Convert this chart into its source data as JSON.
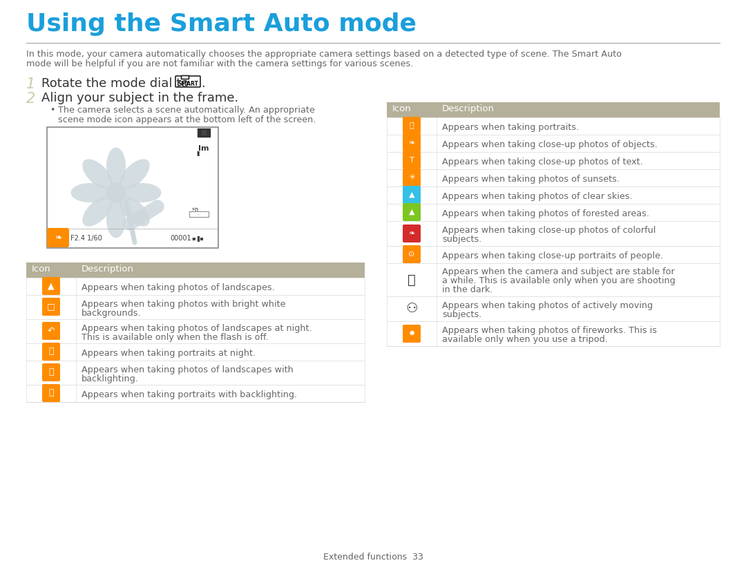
{
  "title": "Using the Smart Auto mode",
  "title_color": "#1a9fdb",
  "title_underline_color": "#999999",
  "intro_text_line1": "In this mode, your camera automatically chooses the appropriate camera settings based on a detected type of scene. The Smart Auto",
  "intro_text_line2": "mode will be helpful if you are not familiar with the camera settings for various scenes.",
  "step1_num": "1",
  "step1_text": "Rotate the mode dial to",
  "step2_num": "2",
  "step2_text": "Align your subject in the frame.",
  "bullet_line1": "The camera selects a scene automatically. An appropriate",
  "bullet_line2": "scene mode icon appears at the bottom left of the screen.",
  "table_header_bg": "#b5b09a",
  "table_border_color": "#dddddd",
  "text_color": "#666666",
  "dark_text": "#333333",
  "footer_text": "Extended functions  33",
  "page_bg": "#ffffff",
  "left_table_rows": [
    {
      "icon_color": "#FF8C00",
      "desc_line1": "Appears when taking photos of landscapes.",
      "desc_line2": ""
    },
    {
      "icon_color": "#FF8C00",
      "desc_line1": "Appears when taking photos with bright white",
      "desc_line2": "backgrounds."
    },
    {
      "icon_color": "#FF8C00",
      "desc_line1": "Appears when taking photos of landscapes at night.",
      "desc_line2": "This is available only when the flash is off."
    },
    {
      "icon_color": "#FF8C00",
      "desc_line1": "Appears when taking portraits at night.",
      "desc_line2": ""
    },
    {
      "icon_color": "#FF8C00",
      "desc_line1": "Appears when taking photos of landscapes with",
      "desc_line2": "backlighting."
    },
    {
      "icon_color": "#FF8C00",
      "desc_line1": "Appears when taking portraits with backlighting.",
      "desc_line2": ""
    }
  ],
  "right_table_rows": [
    {
      "icon_color": "#FF8C00",
      "desc_line1": "Appears when taking portraits.",
      "desc_line2": "",
      "desc_line3": ""
    },
    {
      "icon_color": "#FF8C00",
      "desc_line1": "Appears when taking close-up photos of objects.",
      "desc_line2": "",
      "desc_line3": ""
    },
    {
      "icon_color": "#FF8C00",
      "desc_line1": "Appears when taking close-up photos of text.",
      "desc_line2": "",
      "desc_line3": ""
    },
    {
      "icon_color": "#FF8C00",
      "desc_line1": "Appears when taking photos of sunsets.",
      "desc_line2": "",
      "desc_line3": ""
    },
    {
      "icon_color": "#35c0e8",
      "desc_line1": "Appears when taking photos of clear skies.",
      "desc_line2": "",
      "desc_line3": ""
    },
    {
      "icon_color": "#7dc520",
      "desc_line1": "Appears when taking photos of forested areas.",
      "desc_line2": "",
      "desc_line3": ""
    },
    {
      "icon_color": "#d42b2b",
      "desc_line1": "Appears when taking close-up photos of colorful",
      "desc_line2": "subjects.",
      "desc_line3": ""
    },
    {
      "icon_color": "#FF8C00",
      "desc_line1": "Appears when taking close-up portraits of people.",
      "desc_line2": "",
      "desc_line3": ""
    },
    {
      "icon_color": "#444444",
      "desc_line1": "Appears when the camera and subject are stable for",
      "desc_line2": "a while. This is available only when you are shooting",
      "desc_line3": "in the dark."
    },
    {
      "icon_color": "#444444",
      "desc_line1": "Appears when taking photos of actively moving",
      "desc_line2": "subjects.",
      "desc_line3": ""
    },
    {
      "icon_color": "#FF8C00",
      "desc_line1": "Appears when taking photos of fireworks. This is",
      "desc_line2": "available only when you use a tripod.",
      "desc_line3": ""
    }
  ]
}
